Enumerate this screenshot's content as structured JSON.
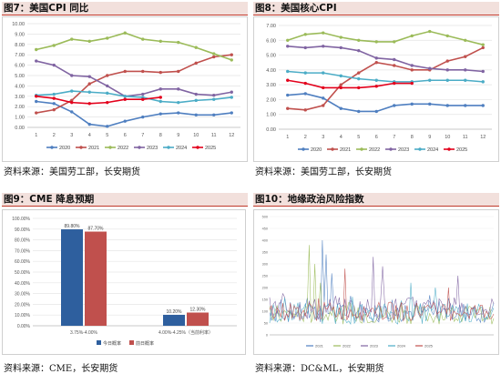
{
  "panels": {
    "p7": {
      "title": "图7：美国CPI 同比",
      "source": "资料来源：美国劳工部，长安期货"
    },
    "p8": {
      "title": "图8：美国核心CPI",
      "source": "资料来源：美国劳工部，长安期货"
    },
    "p9": {
      "title": "图9：CME 降息预期",
      "source": "资料来源：CME，长安期货"
    },
    "p10": {
      "title": "图10：地缘政治风险指数",
      "source": "资料来源：DC&ML，长安期货"
    }
  },
  "colors": {
    "s2020": "#4f7fc0",
    "s2021": "#c0504d",
    "s2022": "#9bbb59",
    "s2023": "#8064a2",
    "s2024": "#4bacc6",
    "s2025": "#e3001b",
    "barBlue": "#2e5f9e",
    "barRed": "#c0504d"
  },
  "chart_data": [
    {
      "type": "line",
      "x": [
        1,
        2,
        3,
        4,
        5,
        6,
        7,
        8,
        9,
        10,
        11,
        12
      ],
      "ylim": [
        0,
        10
      ],
      "yticks": [
        "0.00",
        "1.00",
        "2.00",
        "3.00",
        "4.00",
        "5.00",
        "6.00",
        "7.00",
        "8.00",
        "9.00",
        "10.00"
      ],
      "series": [
        {
          "name": "2020",
          "color": "s2020",
          "values": [
            2.5,
            2.3,
            1.5,
            0.3,
            0.1,
            0.6,
            1.0,
            1.3,
            1.4,
            1.2,
            1.2,
            1.4
          ]
        },
        {
          "name": "2021",
          "color": "s2021",
          "values": [
            1.4,
            1.7,
            2.6,
            4.2,
            5.0,
            5.4,
            5.4,
            5.3,
            5.4,
            6.2,
            6.8,
            7.0
          ]
        },
        {
          "name": "2022",
          "color": "s2022",
          "values": [
            7.5,
            7.9,
            8.5,
            8.3,
            8.6,
            9.1,
            8.5,
            8.3,
            8.2,
            7.7,
            7.1,
            6.5
          ]
        },
        {
          "name": "2023",
          "color": "s2023",
          "values": [
            6.4,
            6.0,
            5.0,
            4.9,
            4.0,
            3.0,
            3.2,
            3.7,
            3.7,
            3.2,
            3.1,
            3.4
          ]
        },
        {
          "name": "2024",
          "color": "s2024",
          "values": [
            3.1,
            3.2,
            3.5,
            3.4,
            3.3,
            3.0,
            2.9,
            2.5,
            2.4,
            2.6,
            2.7,
            2.9
          ]
        },
        {
          "name": "2025",
          "color": "s2025",
          "values": [
            3.0,
            2.8,
            2.4,
            2.3,
            2.4,
            2.7,
            2.7,
            2.9,
            null,
            null,
            null,
            null
          ]
        }
      ]
    },
    {
      "type": "line",
      "x": [
        1,
        2,
        3,
        4,
        5,
        6,
        7,
        8,
        9,
        10,
        11,
        12
      ],
      "ylim": [
        0,
        7
      ],
      "yticks": [
        "0.00",
        "1.00",
        "2.00",
        "3.00",
        "4.00",
        "5.00",
        "6.00",
        "7.00"
      ],
      "series": [
        {
          "name": "2020",
          "color": "s2020",
          "values": [
            2.3,
            2.4,
            2.1,
            1.4,
            1.2,
            1.2,
            1.6,
            1.7,
            1.7,
            1.6,
            1.6,
            1.6
          ]
        },
        {
          "name": "2021",
          "color": "s2021",
          "values": [
            1.4,
            1.3,
            1.6,
            3.0,
            3.8,
            4.5,
            4.3,
            4.0,
            4.0,
            4.6,
            4.9,
            5.5
          ]
        },
        {
          "name": "2022",
          "color": "s2022",
          "values": [
            6.0,
            6.4,
            6.5,
            6.2,
            6.0,
            5.9,
            5.9,
            6.3,
            6.6,
            6.3,
            6.0,
            5.7
          ]
        },
        {
          "name": "2023",
          "color": "s2023",
          "values": [
            5.6,
            5.5,
            5.6,
            5.5,
            5.3,
            4.8,
            4.7,
            4.3,
            4.1,
            4.0,
            4.0,
            3.9
          ]
        },
        {
          "name": "2024",
          "color": "s2024",
          "values": [
            3.9,
            3.8,
            3.8,
            3.6,
            3.4,
            3.3,
            3.2,
            3.2,
            3.3,
            3.3,
            3.3,
            3.2
          ]
        },
        {
          "name": "2025",
          "color": "s2025",
          "values": [
            3.3,
            3.1,
            2.8,
            2.8,
            2.8,
            2.9,
            3.1,
            3.1,
            null,
            null,
            null,
            null
          ]
        }
      ]
    },
    {
      "type": "bar",
      "categories": [
        "3.75%-4.00%",
        "4.00%-4.25%（当前利率）"
      ],
      "ylim": [
        0,
        100
      ],
      "yticks": [
        "0.00%",
        "10.00%",
        "20.00%",
        "30.00%",
        "40.00%",
        "50.00%",
        "60.00%",
        "70.00%",
        "80.00%",
        "90.00%",
        "100.00%"
      ],
      "series": [
        {
          "name": "今日概率",
          "color": "barBlue",
          "values": [
            89.8,
            10.2
          ],
          "labels": [
            "89.80%",
            "10.20%"
          ]
        },
        {
          "name": "前日概率",
          "color": "barRed",
          "values": [
            87.7,
            12.3
          ],
          "labels": [
            "87.70%",
            "12.30%"
          ]
        }
      ]
    },
    {
      "type": "line",
      "xtick_labels": [
        "",
        "",
        "",
        "",
        "",
        "",
        "",
        "",
        "",
        "",
        "",
        "",
        "",
        "",
        "",
        ""
      ],
      "ylim": [
        0,
        500
      ],
      "yticks": [
        "0",
        "50",
        "100",
        "150",
        "200",
        "250",
        "300",
        "350",
        "400",
        "450",
        "500"
      ],
      "series": [
        {
          "name": "2021",
          "color": "s2020"
        },
        {
          "name": "2022",
          "color": "s2022"
        },
        {
          "name": "2023",
          "color": "s2023"
        },
        {
          "name": "2024",
          "color": "s2024"
        },
        {
          "name": "2025",
          "color": "s2021"
        }
      ]
    }
  ]
}
